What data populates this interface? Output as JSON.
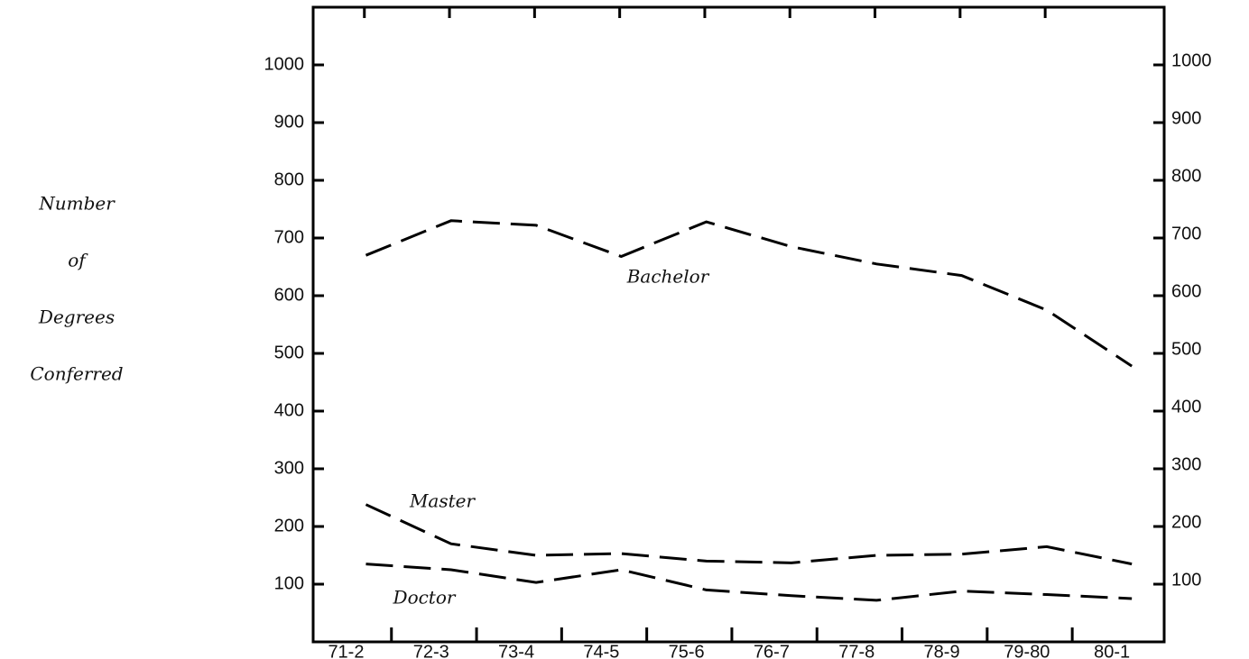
{
  "chart_data": {
    "type": "line",
    "y_label_lines": [
      "Number",
      "of",
      "Degrees",
      "Conferred"
    ],
    "categories": [
      "71-2",
      "72-3",
      "73-4",
      "74-5",
      "75-6",
      "76-7",
      "77-8",
      "78-9",
      "79-80",
      "80-1"
    ],
    "series": [
      {
        "name": "Bachelor",
        "color": "#000000",
        "values": [
          670,
          730,
          722,
          668,
          728,
          685,
          655,
          635,
          575,
          478
        ]
      },
      {
        "name": "Master",
        "color": "#000000",
        "values": [
          238,
          170,
          150,
          153,
          140,
          137,
          150,
          152,
          165,
          135
        ]
      },
      {
        "name": "Doctor",
        "color": "#000000",
        "values": [
          135,
          125,
          103,
          125,
          90,
          80,
          72,
          88,
          82,
          75
        ]
      }
    ],
    "ylim": [
      0,
      1100
    ],
    "yticks": [
      100,
      200,
      300,
      400,
      500,
      600,
      700,
      800,
      900,
      1000
    ],
    "grid": false
  }
}
